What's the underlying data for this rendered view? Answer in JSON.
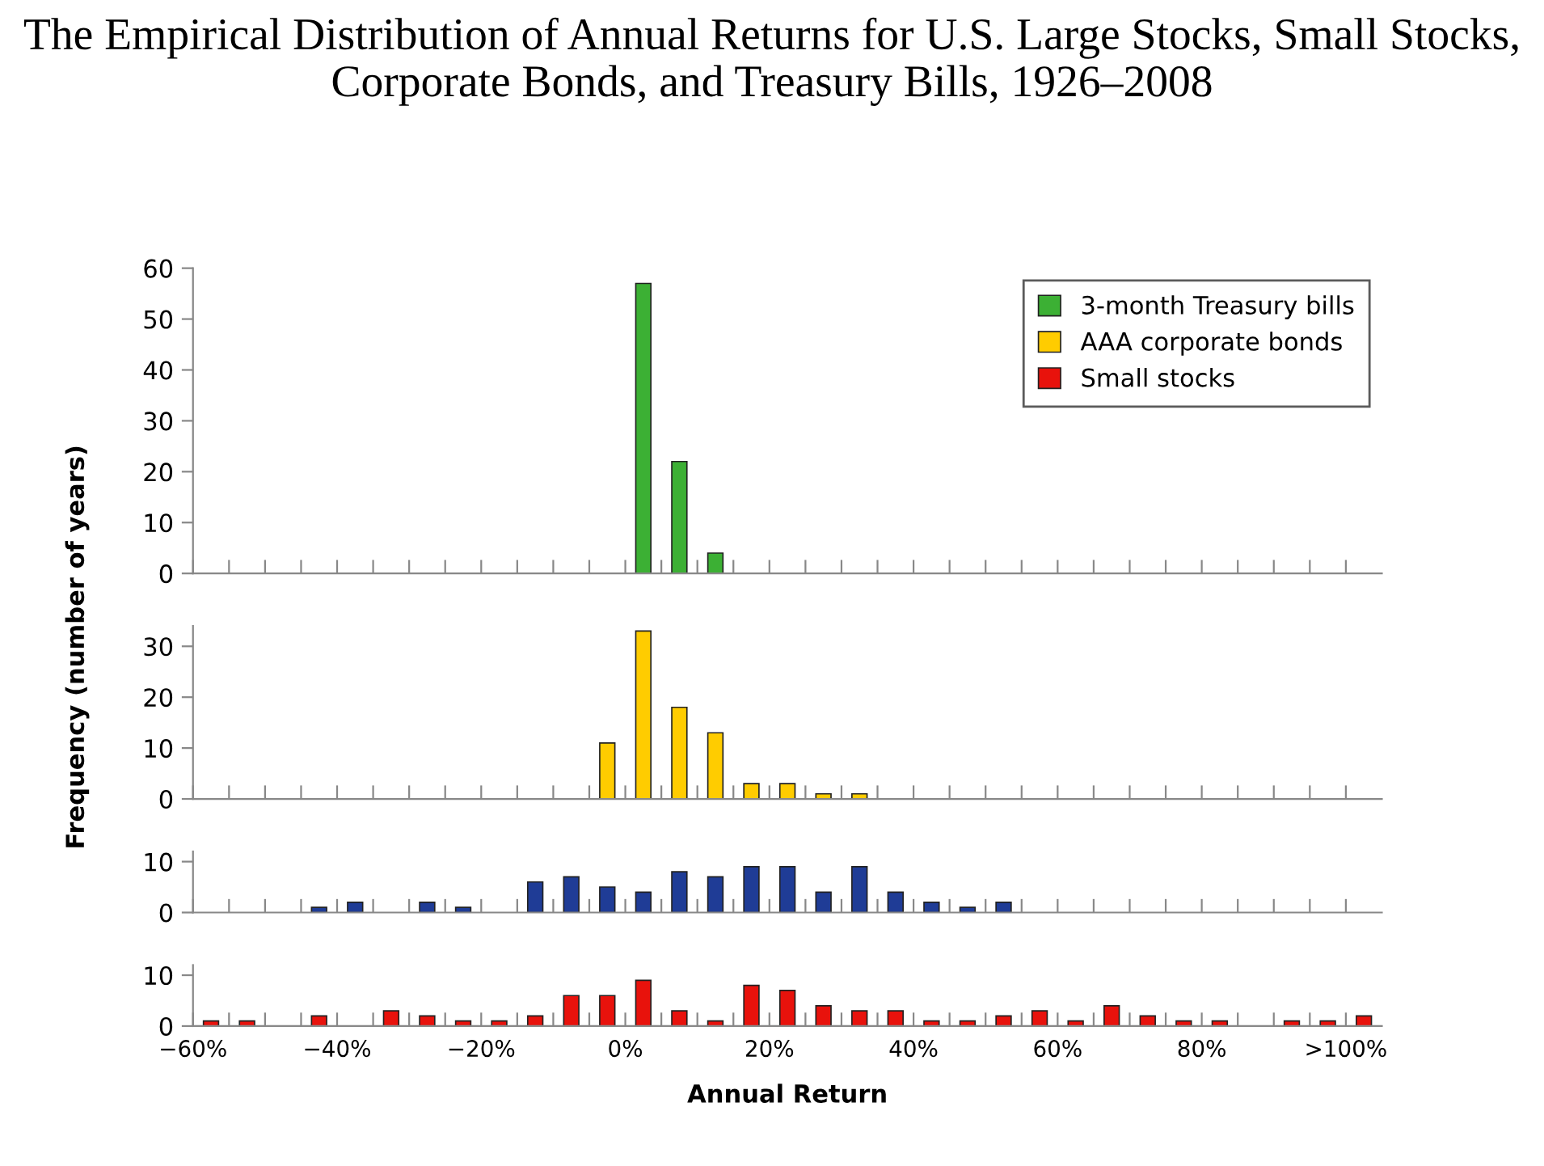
{
  "chart_data": [
    {
      "type": "histogram",
      "title": "The Empirical Distribution of Annual Returns for U.S. Large Stocks, Small Stocks, Corporate Bonds, and Treasury Bills, 1926–2008",
      "ylabel": "Frequency (number of years)",
      "legend": "top right",
      "tick_labels": "y",
      "bins": [
        -60,
        -55,
        -50,
        -45,
        -40,
        -35,
        -30,
        -25,
        -20,
        -15,
        -10,
        -5,
        0,
        5,
        10,
        15,
        20,
        25,
        30,
        35,
        40,
        45,
        50,
        55,
        60,
        65,
        70,
        75,
        80,
        85,
        90,
        95,
        100,
        105
      ],
      "series": [
        {
          "name": "3-month Treasury bills",
          "color": "#3cb034",
          "values": [
            0,
            0,
            0,
            0,
            0,
            0,
            0,
            0,
            0,
            0,
            0,
            0,
            57,
            22,
            4,
            0,
            0,
            0,
            0,
            0,
            0,
            0,
            0,
            0,
            0,
            0,
            0,
            0,
            0,
            0,
            0,
            0,
            0
          ]
        }
      ],
      "xlim": [
        -60,
        105
      ],
      "ylim": [
        0,
        60
      ],
      "yticks": [
        0,
        10,
        20,
        30,
        40,
        50,
        60
      ],
      "xticks": [
        {
          "value": -60,
          "label": null
        },
        {
          "value": -55,
          "label": null
        },
        {
          "value": -50,
          "label": null
        },
        {
          "value": -45,
          "label": null
        },
        {
          "value": -40,
          "label": null
        },
        {
          "value": -35,
          "label": null
        },
        {
          "value": -30,
          "label": null
        },
        {
          "value": -25,
          "label": null
        },
        {
          "value": -20,
          "label": null
        },
        {
          "value": -15,
          "label": null
        },
        {
          "value": -10,
          "label": null
        },
        {
          "value": -5,
          "label": null
        },
        {
          "value": 0,
          "label": null
        },
        {
          "value": 5,
          "label": null
        },
        {
          "value": 10,
          "label": null
        },
        {
          "value": 15,
          "label": null
        },
        {
          "value": 20,
          "label": null
        },
        {
          "value": 25,
          "label": null
        },
        {
          "value": 30,
          "label": null
        },
        {
          "value": 35,
          "label": null
        },
        {
          "value": 40,
          "label": null
        },
        {
          "value": 45,
          "label": null
        },
        {
          "value": 50,
          "label": null
        },
        {
          "value": 55,
          "label": null
        },
        {
          "value": 60,
          "label": null
        },
        {
          "value": 65,
          "label": null
        },
        {
          "value": 70,
          "label": null
        },
        {
          "value": 75,
          "label": null
        },
        {
          "value": 80,
          "label": null
        },
        {
          "value": 85,
          "label": null
        },
        {
          "value": 90,
          "label": null
        },
        {
          "value": 95,
          "label": null
        },
        {
          "value": 100,
          "label": null
        }
      ]
    },
    {
      "type": "histogram",
      "legend": "top right",
      "tick_labels": "y",
      "bins": [
        -60,
        -55,
        -50,
        -45,
        -40,
        -35,
        -30,
        -25,
        -20,
        -15,
        -10,
        -5,
        0,
        5,
        10,
        15,
        20,
        25,
        30,
        35,
        40,
        45,
        50,
        55,
        60,
        65,
        70,
        75,
        80,
        85,
        90,
        95,
        100,
        105
      ],
      "series": [
        {
          "name": "AAA corporate bonds",
          "color": "#ffcc00",
          "values": [
            0,
            0,
            0,
            0,
            0,
            0,
            0,
            0,
            0,
            0,
            0,
            11,
            33,
            18,
            13,
            3,
            3,
            1,
            1,
            0,
            0,
            0,
            0,
            0,
            0,
            0,
            0,
            0,
            0,
            0,
            0,
            0,
            0
          ]
        }
      ],
      "xlim": [
        -60,
        105
      ],
      "ylim": [
        0,
        34
      ],
      "yticks": [
        0,
        10,
        20,
        30
      ],
      "xticks": [
        {
          "value": -60,
          "label": null
        },
        {
          "value": -55,
          "label": null
        },
        {
          "value": -50,
          "label": null
        },
        {
          "value": -45,
          "label": null
        },
        {
          "value": -40,
          "label": null
        },
        {
          "value": -35,
          "label": null
        },
        {
          "value": -30,
          "label": null
        },
        {
          "value": -25,
          "label": null
        },
        {
          "value": -20,
          "label": null
        },
        {
          "value": -15,
          "label": null
        },
        {
          "value": -10,
          "label": null
        },
        {
          "value": -5,
          "label": null
        },
        {
          "value": 0,
          "label": null
        },
        {
          "value": 5,
          "label": null
        },
        {
          "value": 10,
          "label": null
        },
        {
          "value": 15,
          "label": null
        },
        {
          "value": 20,
          "label": null
        },
        {
          "value": 25,
          "label": null
        },
        {
          "value": 30,
          "label": null
        },
        {
          "value": 35,
          "label": null
        },
        {
          "value": 40,
          "label": null
        },
        {
          "value": 45,
          "label": null
        },
        {
          "value": 50,
          "label": null
        },
        {
          "value": 55,
          "label": null
        },
        {
          "value": 60,
          "label": null
        },
        {
          "value": 65,
          "label": null
        },
        {
          "value": 70,
          "label": null
        },
        {
          "value": 75,
          "label": null
        },
        {
          "value": 80,
          "label": null
        },
        {
          "value": 85,
          "label": null
        },
        {
          "value": 90,
          "label": null
        },
        {
          "value": 95,
          "label": null
        },
        {
          "value": 100,
          "label": null
        }
      ]
    },
    {
      "type": "histogram",
      "tick_labels": "y",
      "bins": [
        -60,
        -55,
        -50,
        -45,
        -40,
        -35,
        -30,
        -25,
        -20,
        -15,
        -10,
        -5,
        0,
        5,
        10,
        15,
        20,
        25,
        30,
        35,
        40,
        45,
        50,
        55,
        60,
        65,
        70,
        75,
        80,
        85,
        90,
        95,
        100,
        105
      ],
      "series": [
        {
          "color": "#1f3c96",
          "values": [
            0,
            0,
            0,
            1,
            2,
            0,
            2,
            1,
            0,
            6,
            7,
            5,
            4,
            8,
            7,
            9,
            9,
            4,
            9,
            4,
            2,
            1,
            2,
            0,
            0,
            0,
            0,
            0,
            0,
            0,
            0,
            0,
            0
          ]
        }
      ],
      "xlim": [
        -60,
        105
      ],
      "ylim": [
        0,
        12
      ],
      "yticks": [
        0,
        10
      ],
      "xticks": [
        {
          "value": -60,
          "label": null
        },
        {
          "value": -55,
          "label": null
        },
        {
          "value": -50,
          "label": null
        },
        {
          "value": -45,
          "label": null
        },
        {
          "value": -40,
          "label": null
        },
        {
          "value": -35,
          "label": null
        },
        {
          "value": -30,
          "label": null
        },
        {
          "value": -25,
          "label": null
        },
        {
          "value": -20,
          "label": null
        },
        {
          "value": -15,
          "label": null
        },
        {
          "value": -10,
          "label": null
        },
        {
          "value": -5,
          "label": null
        },
        {
          "value": 0,
          "label": null
        },
        {
          "value": 5,
          "label": null
        },
        {
          "value": 10,
          "label": null
        },
        {
          "value": 15,
          "label": null
        },
        {
          "value": 20,
          "label": null
        },
        {
          "value": 25,
          "label": null
        },
        {
          "value": 30,
          "label": null
        },
        {
          "value": 35,
          "label": null
        },
        {
          "value": 40,
          "label": null
        },
        {
          "value": 45,
          "label": null
        },
        {
          "value": 50,
          "label": null
        },
        {
          "value": 55,
          "label": null
        },
        {
          "value": 60,
          "label": null
        },
        {
          "value": 65,
          "label": null
        },
        {
          "value": 70,
          "label": null
        },
        {
          "value": 75,
          "label": null
        },
        {
          "value": 80,
          "label": null
        },
        {
          "value": 85,
          "label": null
        },
        {
          "value": 90,
          "label": null
        },
        {
          "value": 95,
          "label": null
        },
        {
          "value": 100,
          "label": null
        }
      ]
    },
    {
      "type": "histogram",
      "xlabel": "Annual Return",
      "legend": "top right",
      "bins": [
        -60,
        -55,
        -50,
        -45,
        -40,
        -35,
        -30,
        -25,
        -20,
        -15,
        -10,
        -5,
        0,
        5,
        10,
        15,
        20,
        25,
        30,
        35,
        40,
        45,
        50,
        55,
        60,
        65,
        70,
        75,
        80,
        85,
        90,
        95,
        100,
        105
      ],
      "series": [
        {
          "name": "Small stocks",
          "color": "#e8120c",
          "values": [
            1,
            1,
            0,
            2,
            0,
            3,
            2,
            1,
            1,
            2,
            6,
            6,
            9,
            3,
            1,
            8,
            7,
            4,
            3,
            3,
            1,
            1,
            2,
            3,
            1,
            4,
            2,
            1,
            1,
            0,
            1,
            1,
            2
          ]
        }
      ],
      "xlim": [
        -60,
        105
      ],
      "ylim": [
        0,
        12
      ],
      "yticks": [
        0,
        10
      ],
      "xticks": [
        {
          "value": -60,
          "label": "−60%"
        },
        {
          "value": -55,
          "label": null
        },
        {
          "value": -50,
          "label": null
        },
        {
          "value": -45,
          "label": null
        },
        {
          "value": -40,
          "label": "−40%"
        },
        {
          "value": -35,
          "label": null
        },
        {
          "value": -30,
          "label": null
        },
        {
          "value": -25,
          "label": null
        },
        {
          "value": -20,
          "label": "−20%"
        },
        {
          "value": -15,
          "label": null
        },
        {
          "value": -10,
          "label": null
        },
        {
          "value": -5,
          "label": null
        },
        {
          "value": 0,
          "label": "0%"
        },
        {
          "value": 5,
          "label": null
        },
        {
          "value": 10,
          "label": null
        },
        {
          "value": 15,
          "label": null
        },
        {
          "value": 20,
          "label": "20%"
        },
        {
          "value": 25,
          "label": null
        },
        {
          "value": 30,
          "label": null
        },
        {
          "value": 35,
          "label": null
        },
        {
          "value": 40,
          "label": "40%"
        },
        {
          "value": 45,
          "label": null
        },
        {
          "value": 50,
          "label": null
        },
        {
          "value": 55,
          "label": null
        },
        {
          "value": 60,
          "label": "60%"
        },
        {
          "value": 65,
          "label": null
        },
        {
          "value": 70,
          "label": null
        },
        {
          "value": 75,
          "label": null
        },
        {
          "value": 80,
          "label": "80%"
        },
        {
          "value": 85,
          "label": null
        },
        {
          "value": 90,
          "label": null
        },
        {
          "value": 95,
          "label": null
        },
        {
          "value": 100,
          "label": ">100%"
        }
      ]
    }
  ]
}
